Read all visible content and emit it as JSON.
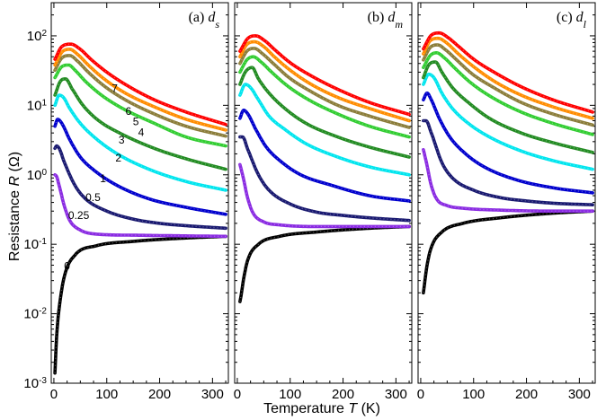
{
  "chart_data": {
    "type": "line",
    "xlabel_prefix": "Temperature ",
    "xlabel_var": "T",
    "xlabel_unit": " (K)",
    "ylabel_prefix": "Resistance ",
    "ylabel_var": "R",
    "ylabel_unit": " (Ω)",
    "xlim": [
      -5,
      330
    ],
    "ylim": [
      0.001,
      300
    ],
    "yscale": "log",
    "x_ticks": [
      "0",
      "100",
      "200",
      "300"
    ],
    "y_ticks": [
      {
        "base": "10",
        "exp": "-3"
      },
      {
        "base": "10",
        "exp": "-2"
      },
      {
        "base": "10",
        "exp": "-1"
      },
      {
        "base": "10",
        "exp": "0"
      },
      {
        "base": "10",
        "exp": "1"
      },
      {
        "base": "10",
        "exp": "2"
      }
    ],
    "panels": [
      {
        "title_prefix": "(a) ",
        "title_var": "d",
        "title_sub": "s"
      },
      {
        "title_prefix": "(b) ",
        "title_var": "d",
        "title_sub": "m"
      },
      {
        "title_prefix": "(c) ",
        "title_var": "d",
        "title_sub": "l"
      }
    ],
    "curve_labels": [
      "7",
      "6",
      "5",
      "4",
      "3",
      "2",
      "1",
      "0.5",
      "0.25",
      "0"
    ],
    "series": [
      {
        "name": "0",
        "color": "#000000",
        "panels": [
          {
            "x": [
              2,
              5,
              10,
              20,
              40,
              80,
              150,
              250,
              325
            ],
            "y": [
              0.0014,
              0.0045,
              0.012,
              0.035,
              0.07,
              0.095,
              0.11,
              0.123,
              0.13
            ]
          },
          {
            "x": [
              5,
              8,
              12,
              20,
              40,
              80,
              150,
              250,
              325
            ],
            "y": [
              0.015,
              0.02,
              0.032,
              0.06,
              0.1,
              0.13,
              0.15,
              0.17,
              0.18
            ]
          },
          {
            "x": [
              5,
              8,
              12,
              20,
              40,
              80,
              150,
              250,
              325
            ],
            "y": [
              0.02,
              0.03,
              0.05,
              0.09,
              0.15,
              0.2,
              0.24,
              0.28,
              0.3
            ]
          }
        ]
      },
      {
        "name": "0.25",
        "color": "#8a2be2",
        "panels": [
          {
            "x": [
              2,
              5,
              10,
              20,
              30,
              50,
              80,
              150,
              250,
              325
            ],
            "y": [
              1.0,
              0.95,
              0.7,
              0.35,
              0.22,
              0.16,
              0.14,
              0.135,
              0.132,
              0.13
            ]
          },
          {
            "x": [
              5,
              10,
              20,
              30,
              50,
              80,
              150,
              250,
              325
            ],
            "y": [
              1.4,
              1.0,
              0.45,
              0.28,
              0.21,
              0.19,
              0.18,
              0.18,
              0.18
            ]
          },
          {
            "x": [
              5,
              10,
              20,
              30,
              50,
              80,
              150,
              250,
              325
            ],
            "y": [
              2.3,
              1.6,
              0.7,
              0.45,
              0.36,
              0.33,
              0.31,
              0.3,
              0.3
            ]
          }
        ]
      },
      {
        "name": "0.5",
        "color": "#191970",
        "panels": [
          {
            "x": [
              2,
              5,
              10,
              20,
              40,
              60,
              100,
              150,
              200,
              250,
              325
            ],
            "y": [
              2.4,
              2.6,
              2.4,
              1.5,
              0.7,
              0.45,
              0.3,
              0.23,
              0.2,
              0.185,
              0.17
            ]
          },
          {
            "x": [
              5,
              10,
              20,
              40,
              60,
              100,
              150,
              200,
              250,
              325
            ],
            "y": [
              3.5,
              3.5,
              2.3,
              1.0,
              0.6,
              0.38,
              0.29,
              0.26,
              0.24,
              0.22
            ]
          },
          {
            "x": [
              5,
              10,
              20,
              40,
              60,
              100,
              150,
              200,
              250,
              325
            ],
            "y": [
              6.0,
              6.0,
              4.0,
              1.5,
              0.9,
              0.6,
              0.47,
              0.42,
              0.39,
              0.37
            ]
          }
        ]
      },
      {
        "name": "1",
        "color": "#0000cd",
        "panels": [
          {
            "x": [
              2,
              7,
              15,
              30,
              50,
              80,
              120,
              180,
              250,
              325
            ],
            "y": [
              5.0,
              6.3,
              5.5,
              3.2,
              1.8,
              1.1,
              0.7,
              0.45,
              0.34,
              0.27
            ]
          },
          {
            "x": [
              5,
              12,
              20,
              35,
              55,
              85,
              120,
              180,
              250,
              325
            ],
            "y": [
              6.5,
              8.5,
              7.5,
              4.5,
              2.5,
              1.5,
              1.0,
              0.7,
              0.5,
              0.42
            ]
          },
          {
            "x": [
              5,
              12,
              20,
              35,
              55,
              85,
              120,
              180,
              250,
              325
            ],
            "y": [
              12,
              15,
              12,
              6.5,
              3.5,
              2.0,
              1.3,
              0.85,
              0.65,
              0.55
            ]
          }
        ]
      },
      {
        "name": "2",
        "color": "#00e5ee",
        "panels": [
          {
            "x": [
              2,
              10,
              18,
              30,
              50,
              80,
              120,
              180,
              250,
              325
            ],
            "y": [
              10,
              14,
              13,
              9,
              5.5,
              3.3,
              2.0,
              1.2,
              0.8,
              0.6
            ]
          },
          {
            "x": [
              5,
              15,
              25,
              40,
              60,
              90,
              130,
              190,
              250,
              325
            ],
            "y": [
              14,
              20,
              18,
              12,
              7,
              4.5,
              2.8,
              1.8,
              1.3,
              1.0
            ]
          },
          {
            "x": [
              5,
              15,
              25,
              40,
              60,
              90,
              130,
              190,
              250,
              325
            ],
            "y": [
              20,
              28,
              25,
              15,
              9,
              5.5,
              3.5,
              2.2,
              1.6,
              1.2
            ]
          }
        ]
      },
      {
        "name": "3",
        "color": "#228b22",
        "panels": [
          {
            "x": [
              2,
              12,
              22,
              35,
              55,
              85,
              130,
              190,
              250,
              325
            ],
            "y": [
              14,
              22,
              24,
              17,
              10,
              6,
              3.8,
              2.4,
              1.7,
              1.2
            ]
          },
          {
            "x": [
              5,
              15,
              28,
              40,
              60,
              90,
              130,
              190,
              250,
              325
            ],
            "y": [
              20,
              30,
              35,
              24,
              15,
              9,
              5.5,
              3.5,
              2.5,
              1.8
            ]
          },
          {
            "x": [
              5,
              15,
              28,
              40,
              60,
              90,
              130,
              190,
              250,
              325
            ],
            "y": [
              25,
              38,
              42,
              30,
              18,
              11,
              6.5,
              4.0,
              2.9,
              2.1
            ]
          }
        ]
      },
      {
        "name": "4",
        "color": "#32cd32",
        "panels": [
          {
            "x": [
              2,
              15,
              28,
              40,
              60,
              90,
              130,
              190,
              250,
              325
            ],
            "y": [
              25,
              36,
              38,
              32,
              22,
              14,
              9,
              5.5,
              3.5,
              2.6
            ]
          },
          {
            "x": [
              5,
              18,
              30,
              45,
              65,
              95,
              135,
              190,
              250,
              325
            ],
            "y": [
              30,
              45,
              50,
              42,
              30,
              19,
              12,
              7.5,
              5,
              3.5
            ]
          },
          {
            "x": [
              5,
              18,
              30,
              45,
              65,
              95,
              135,
              190,
              250,
              325
            ],
            "y": [
              35,
              52,
              57,
              48,
              34,
              21,
              13,
              8,
              5.5,
              3.8
            ]
          }
        ]
      },
      {
        "name": "5",
        "color": "#8b7d3a",
        "panels": [
          {
            "x": [
              2,
              15,
              30,
              45,
              65,
              95,
              135,
              190,
              250,
              325
            ],
            "y": [
              32,
              48,
              52,
              43,
              30,
              19,
              12,
              7.5,
              5,
              3.6
            ]
          },
          {
            "x": [
              5,
              18,
              32,
              48,
              68,
              98,
              138,
              190,
              250,
              325
            ],
            "y": [
              40,
              60,
              66,
              55,
              40,
              25,
              16,
              10,
              7,
              4.8
            ]
          },
          {
            "x": [
              5,
              18,
              32,
              48,
              68,
              98,
              138,
              190,
              250,
              325
            ],
            "y": [
              45,
              68,
              74,
              62,
              45,
              28,
              18,
              11,
              7.5,
              5.2
            ]
          }
        ]
      },
      {
        "name": "6",
        "color": "#ff8c00",
        "panels": [
          {
            "x": [
              2,
              15,
              30,
              45,
              65,
              95,
              135,
              190,
              250,
              325
            ],
            "y": [
              38,
              58,
              64,
              54,
              38,
              24,
              15,
              9.5,
              6.3,
              4.4
            ]
          },
          {
            "x": [
              5,
              18,
              33,
              50,
              70,
              100,
              140,
              190,
              250,
              325
            ],
            "y": [
              50,
              75,
              82,
              70,
              50,
              32,
              20,
              13,
              9,
              6
            ]
          },
          {
            "x": [
              5,
              18,
              33,
              50,
              70,
              100,
              140,
              190,
              250,
              325
            ],
            "y": [
              55,
              85,
              92,
              78,
              56,
              36,
              22,
              14,
              9.5,
              6.5
            ]
          }
        ]
      },
      {
        "name": "7",
        "color": "#ff0000",
        "panels": [
          {
            "x": [
              2,
              15,
              32,
              50,
              70,
              100,
              140,
              190,
              250,
              325
            ],
            "y": [
              46,
              70,
              76,
              64,
              46,
              30,
              19,
              12,
              8,
              5.3
            ]
          },
          {
            "x": [
              5,
              20,
              35,
              52,
              72,
              102,
              142,
              190,
              250,
              325
            ],
            "y": [
              60,
              92,
              100,
              85,
              62,
              40,
              26,
              17,
              11,
              7.4
            ]
          },
          {
            "x": [
              5,
              20,
              35,
              52,
              72,
              102,
              142,
              190,
              250,
              325
            ],
            "y": [
              65,
              102,
              110,
              94,
              70,
              45,
              29,
              18.5,
              12,
              8
            ]
          }
        ]
      }
    ]
  }
}
